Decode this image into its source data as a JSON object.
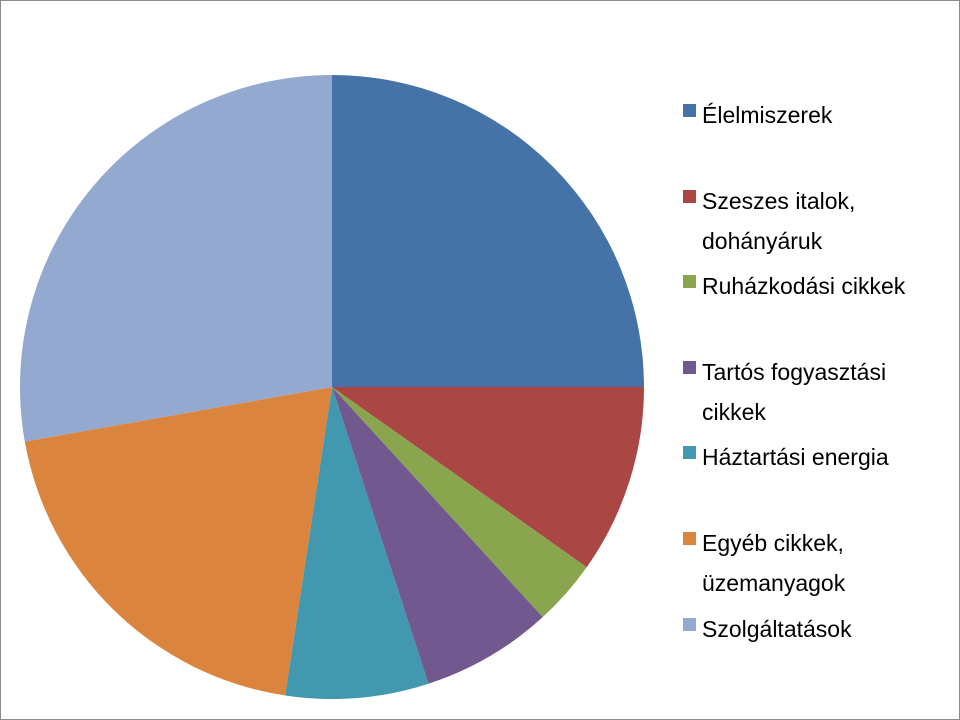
{
  "chart_data": {
    "type": "pie",
    "categories": [
      "Élelmiszerek",
      "Szeszes italok, dohányáruk",
      "Ruházkodási cikkek",
      "Tartós fogyasztási cikkek",
      "Háztartási energia",
      "Egyéb cikkek, üzemanyagok",
      "Szolgáltatások"
    ],
    "values": [
      25,
      9.8,
      3.4,
      6.8,
      7.4,
      19.8,
      27.8
    ],
    "colors": [
      "#4572a7",
      "#aa4643",
      "#89a54e",
      "#71588f",
      "#4198af",
      "#db843d",
      "#93a9cf"
    ],
    "legend": "right"
  }
}
